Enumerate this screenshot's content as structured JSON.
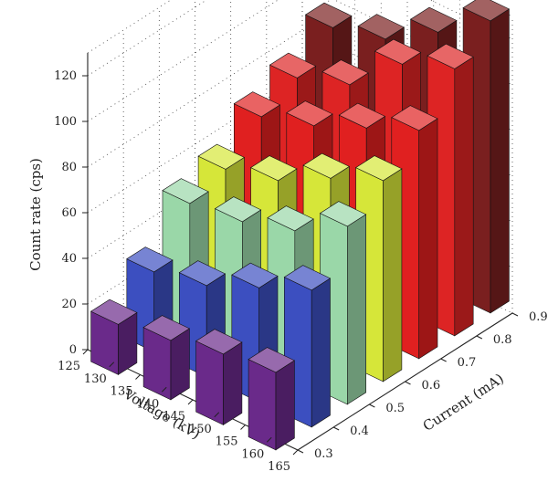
{
  "chart_data": {
    "type": "bar",
    "chart_style": "3d-bar",
    "xlabel": "Voltage (kV)",
    "ylabel": "Current (mA)",
    "zlabel": "Count rate (cps)",
    "x_ticks": [
      "125",
      "130",
      "135",
      "140",
      "145",
      "150",
      "155",
      "160",
      "165"
    ],
    "y_ticks": [
      "0.3",
      "0.4",
      "0.5",
      "0.6",
      "0.7",
      "0.8",
      "0.9"
    ],
    "z_ticks": [
      "0",
      "20",
      "40",
      "60",
      "80",
      "100",
      "120"
    ],
    "zlim": [
      0,
      130
    ],
    "grid": true,
    "categories_voltage": [
      "130",
      "140",
      "150",
      "160"
    ],
    "categories_current": [
      "0.3",
      "0.4",
      "0.5",
      "0.6",
      "0.7",
      "0.8",
      "0.9"
    ],
    "series": [
      {
        "current": "0.3",
        "color": "#6a2a8a",
        "values": [
          22,
          26,
          31,
          34
        ]
      },
      {
        "current": "0.4",
        "color": "#3c4fc0",
        "values": [
          35,
          40,
          50,
          60
        ]
      },
      {
        "current": "0.5",
        "color": "#9ad7a8",
        "values": [
          55,
          58,
          65,
          78
        ]
      },
      {
        "current": "0.6",
        "color": "#d6e639",
        "values": [
          60,
          66,
          78,
          88
        ]
      },
      {
        "current": "0.7",
        "color": "#e02020",
        "values": [
          73,
          80,
          90,
          100
        ]
      },
      {
        "current": "0.8",
        "color": "#dd2424",
        "values": [
          80,
          88,
          108,
          117
        ]
      },
      {
        "current": "0.9",
        "color": "#7a1f1f",
        "values": [
          92,
          98,
          112,
          128
        ]
      }
    ]
  }
}
